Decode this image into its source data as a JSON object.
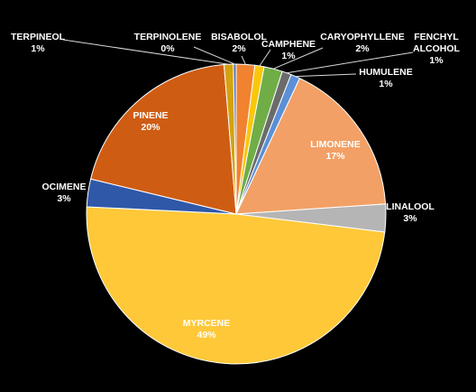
{
  "chart_data": {
    "type": "pie",
    "title": "",
    "slices": [
      {
        "label": "BISABOLOL",
        "value": 2,
        "display": "2%",
        "color": "#f1822f"
      },
      {
        "label": "CAMPHENE",
        "value": 1,
        "display": "1%",
        "color": "#f9c70a"
      },
      {
        "label": "CARYOPHYLLENE",
        "value": 2,
        "display": "2%",
        "color": "#70ad47"
      },
      {
        "label": "FENCHYL ALCOHOL",
        "value": 1,
        "display": "1%",
        "color": "#6b6b6b"
      },
      {
        "label": "HUMULENE",
        "value": 1,
        "display": "1%",
        "color": "#5b8fd6"
      },
      {
        "label": "LIMONENE",
        "value": 17,
        "display": "17%",
        "color": "#f2a065"
      },
      {
        "label": "LINALOOL",
        "value": 3,
        "display": "3%",
        "color": "#b5b5b5"
      },
      {
        "label": "MYRCENE",
        "value": 49,
        "display": "49%",
        "color": "#fec838"
      },
      {
        "label": "OCIMENE",
        "value": 3,
        "display": "3%",
        "color": "#2f58a8"
      },
      {
        "label": "PINENE",
        "value": 20,
        "display": "20%",
        "color": "#cf5c13"
      },
      {
        "label": "TERPINEOL",
        "value": 1,
        "display": "1%",
        "color": "#d4a20f"
      },
      {
        "label": "TERPINOLENE",
        "value": 0.3,
        "display": "0%",
        "color": "#4a6fb5"
      }
    ]
  }
}
